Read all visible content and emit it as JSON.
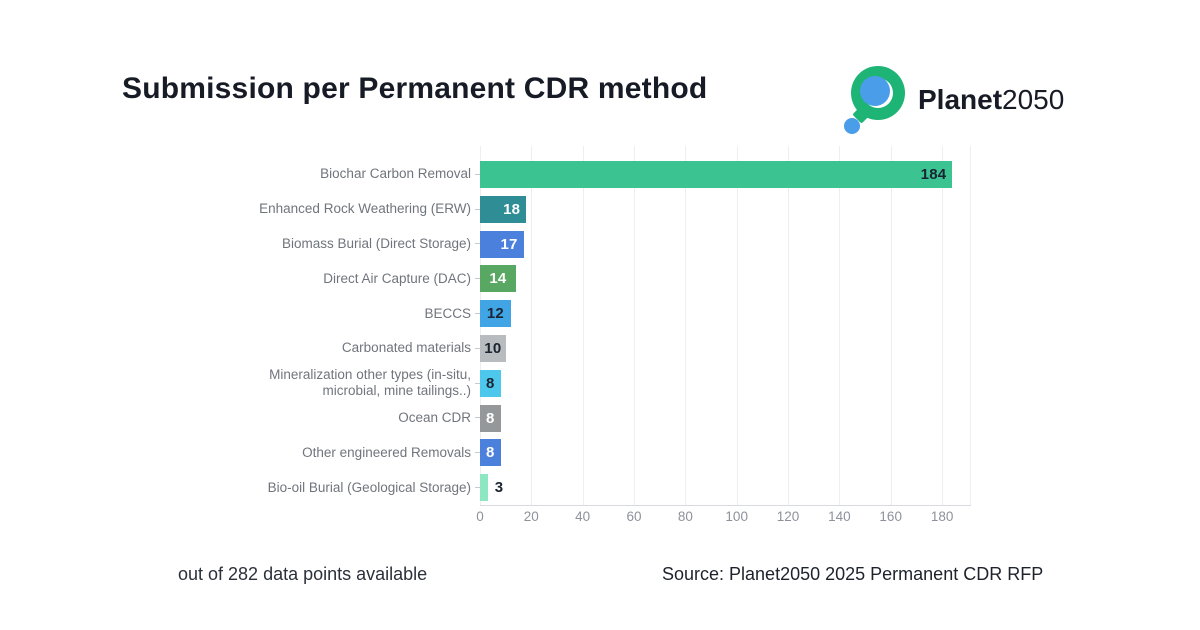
{
  "logo": {
    "text_bold": "Planet",
    "text_light": "2050",
    "green": "#1eb476",
    "blue": "#4a9de9"
  },
  "chart_data": {
    "type": "bar",
    "orientation": "horizontal",
    "title": "Submission per Permanent CDR method",
    "categories": [
      "Biochar Carbon Removal",
      "Enhanced Rock Weathering (ERW)",
      "Biomass Burial (Direct Storage)",
      "Direct Air Capture (DAC)",
      "BECCS",
      "Carbonated materials",
      "Mineralization other types (in-situ, microbial, mine tailings..)",
      "Ocean CDR",
      "Other engineered Removals",
      "Bio-oil Burial (Geological Storage)"
    ],
    "values": [
      184,
      18,
      17,
      14,
      12,
      10,
      8,
      8,
      8,
      3
    ],
    "bar_colors": [
      "#3bc492",
      "#2e8d95",
      "#4b81dd",
      "#58a763",
      "#41a4e4",
      "#b9bcbe",
      "#4ec7ec",
      "#95989a",
      "#4b81dd",
      "#8de7c0"
    ],
    "value_label_colors": [
      "#1a2433",
      "#ffffff",
      "#ffffff",
      "#ffffff",
      "#1a2433",
      "#1a2433",
      "#1a2433",
      "#ffffff",
      "#ffffff",
      "#1a2433"
    ],
    "value_inside": [
      true,
      true,
      true,
      true,
      true,
      true,
      true,
      true,
      true,
      false
    ],
    "xticks": [
      0,
      20,
      40,
      60,
      80,
      100,
      120,
      140,
      160,
      180
    ],
    "xlim": [
      0,
      191
    ],
    "grid": "vertical-light",
    "legend": "none",
    "xlabel": "",
    "ylabel": "",
    "note": "out of 282 data points available",
    "source": "Source: Planet2050 2025 Permanent CDR RFP"
  }
}
